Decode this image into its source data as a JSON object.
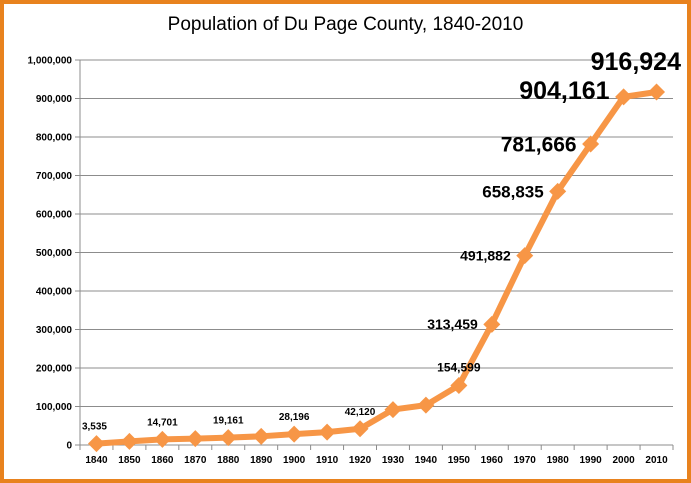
{
  "chart_data": {
    "type": "line",
    "title": "Population of Du Page County, 1840-2010",
    "xlabel": "",
    "ylabel": "",
    "ylim": [
      0,
      1000000
    ],
    "yticks": [
      "0",
      "100,000",
      "200,000",
      "300,000",
      "400,000",
      "500,000",
      "600,000",
      "700,000",
      "800,000",
      "900,000",
      "1,000,000"
    ],
    "ytick_values": [
      0,
      100000,
      200000,
      300000,
      400000,
      500000,
      600000,
      700000,
      800000,
      900000,
      1000000
    ],
    "categories": [
      "1840",
      "1850",
      "1860",
      "1870",
      "1880",
      "1890",
      "1900",
      "1910",
      "1920",
      "1930",
      "1940",
      "1950",
      "1960",
      "1970",
      "1980",
      "1990",
      "2000",
      "2010"
    ],
    "series": [
      {
        "name": "",
        "color": "#f79646",
        "values": [
          3535,
          9290,
          14701,
          16685,
          19161,
          22551,
          28196,
          33432,
          42120,
          91998,
          103480,
          154599,
          313459,
          491882,
          658835,
          781666,
          904161,
          916924
        ]
      }
    ],
    "data_labels": [
      {
        "index": 0,
        "text": "3,535",
        "size": 10
      },
      {
        "index": 2,
        "text": "14,701",
        "size": 10
      },
      {
        "index": 4,
        "text": "19,161",
        "size": 10
      },
      {
        "index": 6,
        "text": "28,196",
        "size": 10
      },
      {
        "index": 8,
        "text": "42,120",
        "size": 10
      },
      {
        "index": 11,
        "text": "154,599",
        "size": 12
      },
      {
        "index": 12,
        "text": "313,459",
        "size": 14
      },
      {
        "index": 13,
        "text": "491,882",
        "size": 14
      },
      {
        "index": 14,
        "text": "658,835",
        "size": 17
      },
      {
        "index": 15,
        "text": "781,666",
        "size": 21
      },
      {
        "index": 16,
        "text": "904,161",
        "size": 25
      },
      {
        "index": 17,
        "text": "916,924",
        "size": 25
      }
    ],
    "grid": true,
    "legend": "none"
  }
}
